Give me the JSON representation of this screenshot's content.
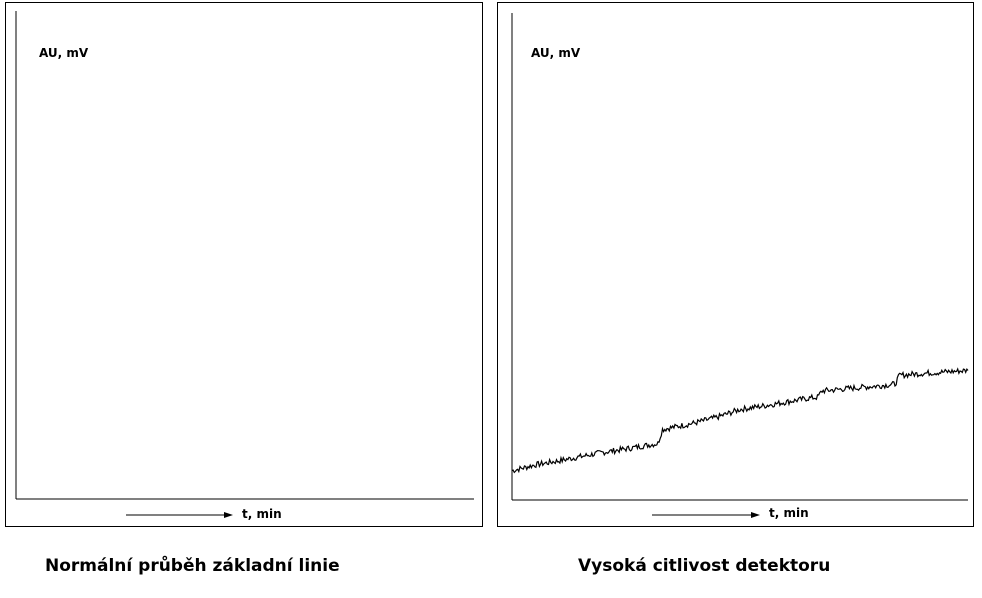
{
  "chart_data": [
    {
      "type": "line",
      "title": "",
      "caption": "Normální průběh základní linie",
      "ylabel": "AU, mV",
      "xlabel": "t, min",
      "grid": false,
      "xlim": [
        0,
        100
      ],
      "ylim": [
        0,
        100
      ],
      "series": [
        {
          "x": [],
          "values": []
        }
      ]
    },
    {
      "type": "line",
      "title": "",
      "caption": "Vysoká citlivost detektoru",
      "ylabel": "AU, mV",
      "xlabel": "t, min",
      "grid": false,
      "xlim": [
        0,
        100
      ],
      "ylim": [
        0,
        100
      ],
      "noise": 0.6,
      "series": [
        {
          "x": [
            0,
            5,
            10,
            15,
            20,
            25,
            30,
            32,
            33,
            40,
            45,
            50,
            55,
            60,
            65,
            67,
            68,
            75,
            80,
            84,
            85,
            90,
            95,
            100
          ],
          "values": [
            6,
            7.2,
            8,
            8.9,
            9.8,
            10.5,
            11.3,
            11.6,
            14.5,
            15.8,
            17,
            18.6,
            19.3,
            20.1,
            20.9,
            21.1,
            22.4,
            23,
            23.4,
            23.8,
            25.6,
            26,
            26.3,
            26.6
          ]
        }
      ]
    }
  ]
}
